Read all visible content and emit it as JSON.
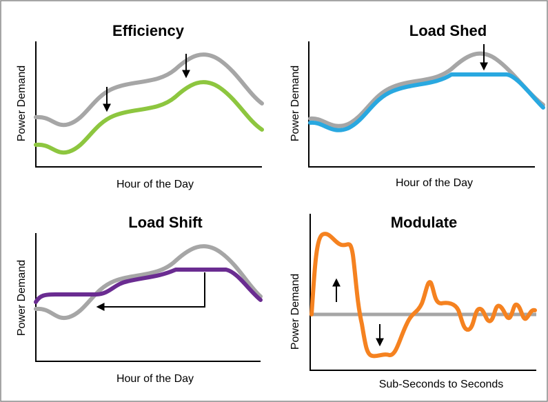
{
  "panels": [
    {
      "title": "Efficiency",
      "x_label": "Hour of the Day",
      "y_label": "Power Demand"
    },
    {
      "title": "Load Shed",
      "x_label": "Hour of the Day",
      "y_label": "Power Demand"
    },
    {
      "title": "Load Shift",
      "x_label": "Hour of the Day",
      "y_label": "Power Demand"
    },
    {
      "title": "Modulate",
      "x_label": "Sub-Seconds to Seconds",
      "y_label": "Power Demand"
    }
  ]
}
